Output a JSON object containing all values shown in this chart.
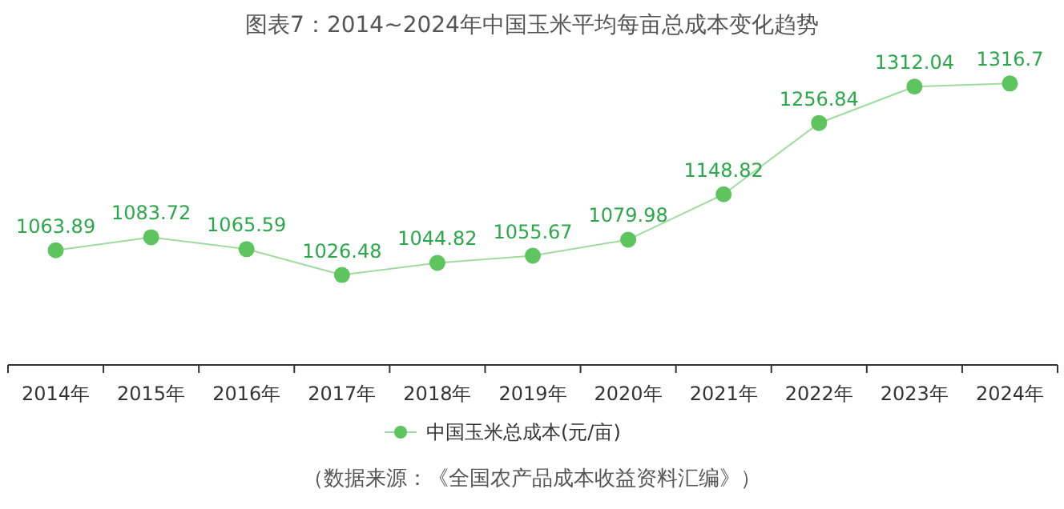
{
  "chart_data": {
    "type": "line",
    "title": "图表7：2014~2024年中国玉米平均每亩总成本变化趋势",
    "categories": [
      "2014年",
      "2015年",
      "2016年",
      "2017年",
      "2018年",
      "2019年",
      "2020年",
      "2021年",
      "2022年",
      "2023年",
      "2024年"
    ],
    "series": [
      {
        "name": "中国玉米总成本(元/亩)",
        "color": "#5ec45e",
        "values": [
          1063.89,
          1083.72,
          1065.59,
          1026.48,
          1044.82,
          1055.67,
          1079.98,
          1148.82,
          1256.84,
          1312.04,
          1316.7
        ]
      }
    ],
    "data_labels": true,
    "marker": "circle",
    "legend": "bottom",
    "grid": false,
    "annotations": [
      "（数据来源：《全国农产品成本收益资料汇编》）"
    ]
  }
}
